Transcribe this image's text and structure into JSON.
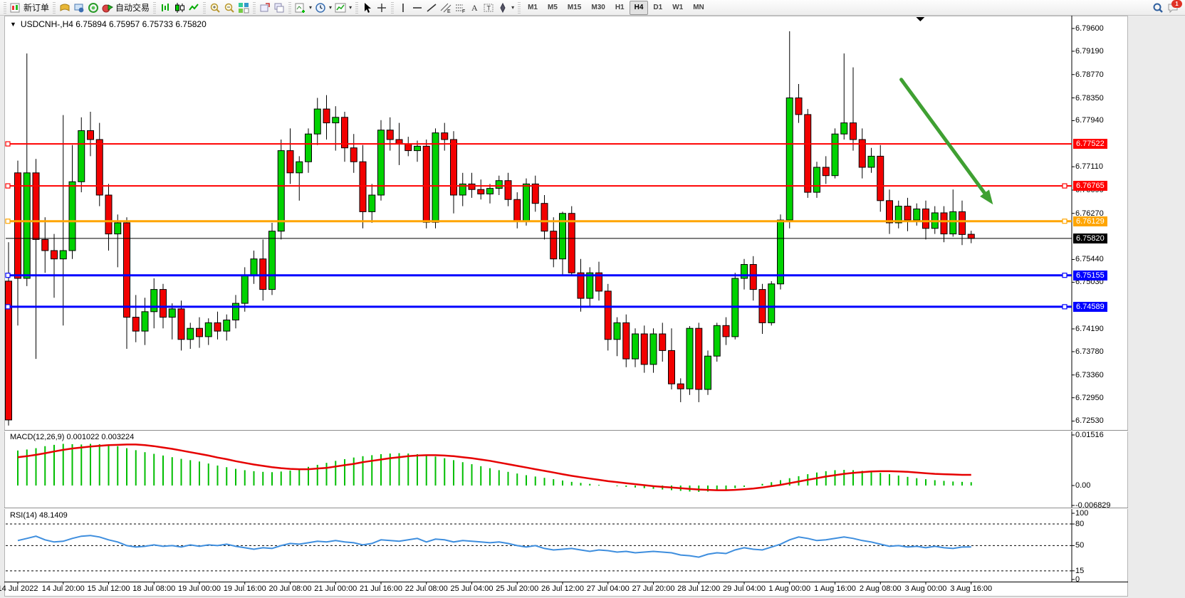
{
  "toolbar": {
    "new_order_label": "新订单",
    "autotrade_label": "自动交易",
    "groups": [
      {
        "items": [
          {
            "icon": "new-order",
            "name": "new-order-button",
            "label_key": "new_order_label"
          }
        ]
      },
      {
        "items": [
          {
            "icon": "charts-gold",
            "name": "charts-button"
          },
          {
            "icon": "market-watch",
            "name": "market-watch-button"
          },
          {
            "icon": "signals",
            "name": "signals-button"
          },
          {
            "icon": "autotrade",
            "name": "autotrade-button",
            "label_key": "autotrade_label"
          }
        ]
      },
      {
        "items": [
          {
            "icon": "bars",
            "name": "bar-chart-button"
          },
          {
            "icon": "candles",
            "name": "candle-chart-button"
          },
          {
            "icon": "line",
            "name": "line-chart-button"
          }
        ]
      },
      {
        "items": [
          {
            "icon": "zoom-in",
            "name": "zoom-in-button"
          },
          {
            "icon": "zoom-out",
            "name": "zoom-out-button"
          },
          {
            "icon": "tile",
            "name": "tile-windows-button"
          }
        ]
      },
      {
        "items": [
          {
            "icon": "arrange-a",
            "name": "auto-arrange-button"
          },
          {
            "icon": "arrange-b",
            "name": "cascade-windows-button"
          }
        ]
      },
      {
        "items": [
          {
            "icon": "new-chart",
            "name": "new-chart-button",
            "caret": true
          },
          {
            "icon": "clock",
            "name": "periods-menu-button",
            "caret": true
          },
          {
            "icon": "indicators",
            "name": "indicators-menu-button",
            "caret": true
          }
        ]
      },
      {
        "items": [
          {
            "icon": "cursor",
            "name": "cursor-tool-button"
          },
          {
            "icon": "crosshair",
            "name": "crosshair-tool-button"
          }
        ]
      },
      {
        "items": [
          {
            "icon": "vline",
            "name": "vertical-line-tool-button"
          },
          {
            "icon": "hline",
            "name": "horizontal-line-tool-button"
          },
          {
            "icon": "trendline",
            "name": "trendline-tool-button"
          },
          {
            "icon": "channel",
            "name": "equidistant-channel-tool-button"
          },
          {
            "icon": "fibo",
            "name": "fibonacci-tool-button"
          },
          {
            "icon": "text",
            "name": "text-tool-button"
          },
          {
            "icon": "label",
            "name": "text-label-tool-button"
          },
          {
            "icon": "shapes",
            "name": "arrows-tool-button",
            "caret": true
          }
        ]
      }
    ],
    "timeframes": [
      "M1",
      "M5",
      "M15",
      "M30",
      "H1",
      "H4",
      "D1",
      "W1",
      "MN"
    ],
    "active_timeframe": "H4",
    "chat_badge": "1"
  },
  "chart": {
    "title_text": "USDCNH-,H4  6.75894 6.75957 6.75733 6.75820",
    "symbol": "USDCNH-",
    "period": "H4",
    "ohlc": {
      "open": "6.75894",
      "high": "6.75957",
      "low": "6.75733",
      "close": "6.75820"
    }
  },
  "indicators": {
    "macd_label": "MACD(12,26,9) 0.001022 0.003224",
    "rsi_label": "RSI(14) 48.1409"
  },
  "chart_data": {
    "type": "candlestick",
    "title": "USDCNH- H4",
    "timeframe": "H4",
    "price_range": [
      6.7245,
      6.7975
    ],
    "price_ticks": [
      6.796,
      6.7919,
      6.7877,
      6.7835,
      6.7794,
      6.7711,
      6.7669,
      6.7627,
      6.7544,
      6.7503,
      6.7419,
      6.7378,
      6.7336,
      6.7295,
      6.7253
    ],
    "x_labels": [
      "14 Jul 2022",
      "14 Jul 20:00",
      "15 Jul 12:00",
      "18 Jul 08:00",
      "19 Jul 00:00",
      "19 Jul 16:00",
      "20 Jul 08:00",
      "21 Jul 00:00",
      "21 Jul 16:00",
      "22 Jul 08:00",
      "25 Jul 04:00",
      "25 Jul 20:00",
      "26 Jul 12:00",
      "27 Jul 04:00",
      "27 Jul 20:00",
      "28 Jul 12:00",
      "29 Jul 04:00",
      "1 Aug 00:00",
      "1 Aug 16:00",
      "2 Aug 08:00",
      "3 Aug 00:00",
      "3 Aug 16:00"
    ],
    "bars_per_label": 5,
    "current_price": 6.7582,
    "horizontal_levels": [
      {
        "price": 6.77522,
        "color": "#FF0000",
        "width": 2,
        "anchors": [
          "left"
        ]
      },
      {
        "price": 6.76765,
        "color": "#FF0000",
        "width": 2,
        "anchors": [
          "left",
          "right"
        ]
      },
      {
        "price": 6.76129,
        "color": "#FFA500",
        "width": 3,
        "anchors": [
          "left",
          "right"
        ]
      },
      {
        "price": 6.7582,
        "color": "#000000",
        "width": 1,
        "anchors": []
      },
      {
        "price": 6.75155,
        "color": "#0000FF",
        "width": 3,
        "anchors": [
          "left",
          "right"
        ]
      },
      {
        "price": 6.74589,
        "color": "#0000FF",
        "width": 3,
        "anchors": [
          "left",
          "right"
        ]
      }
    ],
    "partial_first_candle": [
      6.7505,
      6.7575,
      6.7245,
      6.7255
    ],
    "candles_ohlc": [
      [
        6.77,
        6.7722,
        6.7425,
        6.751
      ],
      [
        6.751,
        6.7915,
        6.7496,
        6.77
      ],
      [
        6.77,
        6.7725,
        6.7365,
        6.758
      ],
      [
        6.758,
        6.762,
        6.752,
        6.756
      ],
      [
        6.756,
        6.759,
        6.7475,
        6.7545
      ],
      [
        6.7545,
        6.7804,
        6.7425,
        6.756
      ],
      [
        6.756,
        6.775,
        6.7545,
        6.7684
      ],
      [
        6.7684,
        6.78,
        6.7665,
        6.7776
      ],
      [
        6.7776,
        6.781,
        6.773,
        6.776
      ],
      [
        6.776,
        6.779,
        6.764,
        6.766
      ],
      [
        6.766,
        6.768,
        6.756,
        6.759
      ],
      [
        6.759,
        6.7625,
        6.753,
        6.761
      ],
      [
        6.761,
        6.762,
        6.7383,
        6.744
      ],
      [
        6.744,
        6.748,
        6.7395,
        6.7415
      ],
      [
        6.7415,
        6.7475,
        6.739,
        6.745
      ],
      [
        6.745,
        6.751,
        6.742,
        6.749
      ],
      [
        6.749,
        6.75,
        6.742,
        6.744
      ],
      [
        6.744,
        6.7465,
        6.74,
        6.7455
      ],
      [
        6.7455,
        6.747,
        6.738,
        6.74
      ],
      [
        6.74,
        6.743,
        6.7383,
        6.742
      ],
      [
        6.742,
        6.744,
        6.7385,
        6.7405
      ],
      [
        6.7405,
        6.7438,
        6.739,
        6.743
      ],
      [
        6.743,
        6.745,
        6.74,
        6.7415
      ],
      [
        6.7415,
        6.7445,
        6.7398,
        6.7435
      ],
      [
        6.7435,
        6.748,
        6.742,
        6.7465
      ],
      [
        6.7465,
        6.753,
        6.745,
        6.7515
      ],
      [
        6.7515,
        6.756,
        6.75,
        6.7545
      ],
      [
        6.7545,
        6.758,
        6.747,
        6.749
      ],
      [
        6.749,
        6.761,
        6.748,
        6.7595
      ],
      [
        6.7595,
        6.776,
        6.758,
        6.774
      ],
      [
        6.774,
        6.778,
        6.768,
        6.77
      ],
      [
        6.77,
        6.773,
        6.765,
        6.772
      ],
      [
        6.772,
        6.778,
        6.77,
        6.777
      ],
      [
        6.777,
        6.7835,
        6.775,
        6.7815
      ],
      [
        6.7815,
        6.784,
        6.776,
        6.779
      ],
      [
        6.779,
        6.782,
        6.774,
        6.78
      ],
      [
        6.78,
        6.781,
        6.772,
        6.7745
      ],
      [
        6.7745,
        6.777,
        6.77,
        6.772
      ],
      [
        6.772,
        6.775,
        6.76,
        6.763
      ],
      [
        6.763,
        6.768,
        6.761,
        6.766
      ],
      [
        6.766,
        6.7795,
        6.765,
        6.7777
      ],
      [
        6.7777,
        6.78,
        6.774,
        6.776
      ],
      [
        6.776,
        6.779,
        6.7714,
        6.7752
      ],
      [
        6.7752,
        6.7765,
        6.773,
        6.774
      ],
      [
        6.774,
        6.7758,
        6.772,
        6.7748
      ],
      [
        6.7748,
        6.776,
        6.76,
        6.7611
      ],
      [
        6.7611,
        6.778,
        6.76,
        6.7772
      ],
      [
        6.7772,
        6.779,
        6.774,
        6.776
      ],
      [
        6.776,
        6.7775,
        6.7627,
        6.766
      ],
      [
        6.766,
        6.77,
        6.764,
        6.768
      ],
      [
        6.768,
        6.77,
        6.7655,
        6.767
      ],
      [
        6.767,
        6.7688,
        6.7652,
        6.7662
      ],
      [
        6.7662,
        6.768,
        6.7645,
        6.7672
      ],
      [
        6.7672,
        6.7695,
        6.766,
        6.7686
      ],
      [
        6.7686,
        6.77,
        6.764,
        6.7652
      ],
      [
        6.7652,
        6.7665,
        6.76,
        6.7612
      ],
      [
        6.7612,
        6.769,
        6.7605,
        6.768
      ],
      [
        6.768,
        6.7695,
        6.763,
        6.7645
      ],
      [
        6.7645,
        6.766,
        6.758,
        6.7595
      ],
      [
        6.7595,
        6.762,
        6.753,
        6.7545
      ],
      [
        6.7545,
        6.763,
        6.7515,
        6.7627
      ],
      [
        6.7627,
        6.764,
        6.7515,
        6.752
      ],
      [
        6.752,
        6.7545,
        6.745,
        6.7474
      ],
      [
        6.7474,
        6.753,
        6.746,
        6.752
      ],
      [
        6.752,
        6.754,
        6.747,
        6.7487
      ],
      [
        6.7487,
        6.75,
        6.738,
        6.74
      ],
      [
        6.74,
        6.744,
        6.737,
        6.743
      ],
      [
        6.743,
        6.7445,
        6.735,
        6.7365
      ],
      [
        6.7365,
        6.742,
        6.735,
        6.741
      ],
      [
        6.741,
        6.7425,
        6.734,
        6.7355
      ],
      [
        6.7355,
        6.742,
        6.734,
        6.741
      ],
      [
        6.741,
        6.743,
        6.736,
        6.738
      ],
      [
        6.738,
        6.742,
        6.731,
        6.732
      ],
      [
        6.732,
        6.733,
        6.7287,
        6.7311
      ],
      [
        6.7311,
        6.7424,
        6.73,
        6.742
      ],
      [
        6.742,
        6.743,
        6.7287,
        6.731
      ],
      [
        6.731,
        6.738,
        6.73,
        6.737
      ],
      [
        6.737,
        6.743,
        6.736,
        6.7425
      ],
      [
        6.7425,
        6.744,
        6.739,
        6.7405
      ],
      [
        6.7405,
        6.752,
        6.74,
        6.751
      ],
      [
        6.751,
        6.7545,
        6.749,
        6.7535
      ],
      [
        6.7535,
        6.755,
        6.747,
        6.749
      ],
      [
        6.749,
        6.75,
        6.741,
        6.743
      ],
      [
        6.743,
        6.7505,
        6.7425,
        6.75
      ],
      [
        6.75,
        6.7625,
        6.749,
        6.7615
      ],
      [
        6.7615,
        6.7955,
        6.76,
        6.7835
      ],
      [
        6.7835,
        6.786,
        6.779,
        6.7805
      ],
      [
        6.7805,
        6.7815,
        6.7655,
        6.7665
      ],
      [
        6.7665,
        6.772,
        6.7655,
        6.771
      ],
      [
        6.771,
        6.773,
        6.768,
        6.7695
      ],
      [
        6.7695,
        6.778,
        6.769,
        6.777
      ],
      [
        6.777,
        6.7915,
        6.776,
        6.779
      ],
      [
        6.779,
        6.789,
        6.774,
        6.776
      ],
      [
        6.776,
        6.778,
        6.769,
        6.771
      ],
      [
        6.771,
        6.7745,
        6.77,
        6.773
      ],
      [
        6.773,
        6.775,
        6.763,
        6.765
      ],
      [
        6.765,
        6.767,
        6.759,
        6.761
      ],
      [
        6.761,
        6.765,
        6.76,
        6.764
      ],
      [
        6.764,
        6.7655,
        6.7595,
        6.7615
      ],
      [
        6.7615,
        6.7645,
        6.7605,
        6.7635
      ],
      [
        6.7635,
        6.765,
        6.758,
        6.76
      ],
      [
        6.76,
        6.764,
        6.759,
        6.7628
      ],
      [
        6.7628,
        6.764,
        6.7575,
        6.759
      ],
      [
        6.759,
        6.767,
        6.7585,
        6.763
      ],
      [
        6.763,
        6.765,
        6.757,
        6.7589
      ],
      [
        6.75894,
        6.75957,
        6.75733,
        6.7582
      ]
    ],
    "macd": {
      "params": "12,26,9",
      "unit": 0.0001,
      "range": [
        -0.006829,
        0.01516
      ],
      "axis_ticks": [
        {
          "label": "0.01516",
          "value": 0.01516
        },
        {
          "label": "0.00",
          "value": 0
        },
        {
          "label": "-0.006829",
          "value": -0.006829
        }
      ],
      "last_main": 0.001022,
      "last_signal": 0.003224,
      "histogram": [
        105,
        108,
        112,
        118,
        122,
        125,
        124,
        123,
        125,
        124,
        122,
        118,
        112,
        106,
        100,
        95,
        90,
        85,
        80,
        76,
        72,
        66,
        60,
        55,
        50,
        46,
        43,
        41,
        40,
        42,
        45,
        50,
        56,
        62,
        68,
        74,
        79,
        84,
        88,
        91,
        94,
        96,
        97,
        96,
        94,
        91,
        87,
        82,
        76,
        70,
        64,
        58,
        52,
        46,
        41,
        36,
        31,
        27,
        23,
        19,
        15,
        11,
        8,
        5,
        2,
        0,
        -2,
        -4,
        -6,
        -8,
        -10,
        -12,
        -14,
        -16,
        -18,
        -19,
        -18,
        -16,
        -12,
        -8,
        -4,
        0,
        5,
        10,
        16,
        22,
        28,
        34,
        39,
        43,
        46,
        47,
        46,
        44,
        41,
        38,
        34,
        30,
        26,
        22,
        19,
        16,
        14,
        12,
        11,
        10
      ],
      "signal": [
        85,
        88,
        92,
        97,
        102,
        107,
        111,
        114,
        117,
        119,
        121,
        122,
        123,
        123,
        121,
        118,
        114,
        110,
        105,
        100,
        95,
        90,
        84,
        79,
        73,
        68,
        63,
        59,
        55,
        52,
        50,
        49,
        49,
        51,
        53,
        57,
        61,
        65,
        70,
        74,
        78,
        82,
        85,
        88,
        90,
        91,
        91,
        90,
        88,
        85,
        82,
        78,
        74,
        69,
        64,
        59,
        54,
        49,
        44,
        39,
        34,
        29,
        25,
        21,
        17,
        13,
        10,
        7,
        4,
        1,
        -2,
        -4,
        -6,
        -8,
        -10,
        -12,
        -13,
        -14,
        -14,
        -13,
        -11,
        -9,
        -6,
        -2,
        2,
        7,
        12,
        17,
        22,
        27,
        31,
        35,
        38,
        40,
        42,
        43,
        43,
        42,
        41,
        39,
        37,
        35,
        34,
        33,
        32,
        32
      ]
    },
    "rsi": {
      "period": 14,
      "last": 48.1409,
      "range": [
        0,
        100
      ],
      "levels": [
        80,
        50,
        15
      ],
      "axis_ticks": [
        {
          "label": "100",
          "value": 100
        },
        {
          "label": "80",
          "value": 80
        },
        {
          "label": "50",
          "value": 50
        },
        {
          "label": "15",
          "value": 15
        },
        {
          "label": "0",
          "value": 0
        }
      ],
      "values": [
        57,
        60,
        63,
        58,
        55,
        56,
        60,
        63,
        64,
        62,
        58,
        55,
        50,
        48,
        49,
        51,
        49,
        50,
        48,
        51,
        49,
        51,
        50,
        52,
        49,
        47,
        45,
        47,
        46,
        50,
        53,
        52,
        54,
        56,
        55,
        57,
        55,
        54,
        51,
        53,
        58,
        57,
        56,
        58,
        60,
        55,
        59,
        58,
        55,
        57,
        56,
        55,
        54,
        55,
        53,
        50,
        48,
        50,
        46,
        44,
        45,
        46,
        44,
        42,
        44,
        43,
        41,
        42,
        40,
        41,
        42,
        41,
        40,
        37,
        36,
        34,
        38,
        40,
        39,
        44,
        47,
        45,
        44,
        48,
        52,
        58,
        62,
        60,
        57,
        58,
        60,
        62,
        60,
        57,
        55,
        52,
        49,
        50,
        48,
        49,
        47,
        49,
        47,
        46,
        48,
        48.14
      ],
      "levels_style": "dashed"
    },
    "annotations": {
      "down_arrow": {
        "from_bar": 97.3,
        "from_price": 6.7868,
        "to_bar": 107.4,
        "to_price": 6.7643,
        "color": "#3FA032"
      },
      "shift_marker_bar": 99.4
    }
  },
  "colors": {
    "candle_up": "#00D200",
    "candle_down": "#F20000",
    "candle_outline": "#000000",
    "macd_hist": "#00BE00",
    "macd_signal": "#E60000",
    "rsi_line": "#3E8EDE",
    "level_red": "#FF0000",
    "level_orange": "#FFA500",
    "level_blue": "#0000FF",
    "arrow_green": "#3FA032",
    "badge_text": "#FFFFFF"
  }
}
